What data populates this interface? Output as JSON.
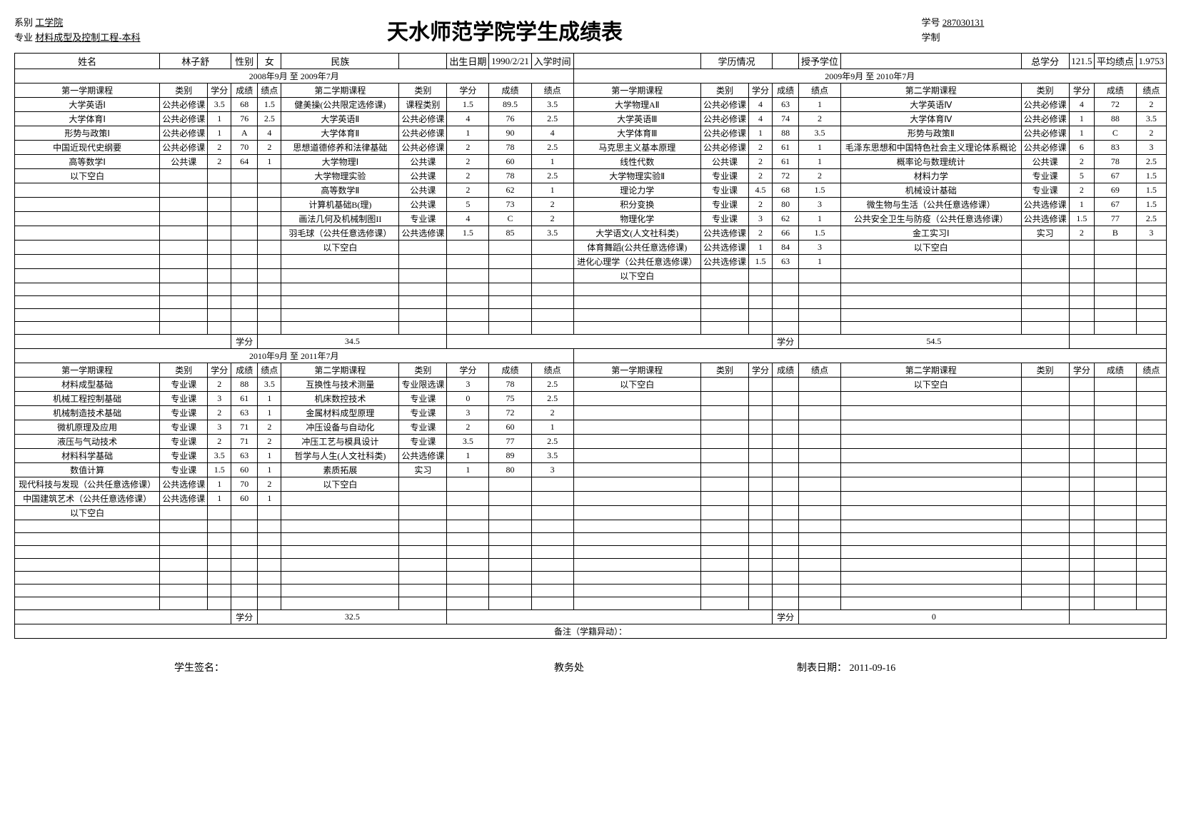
{
  "header": {
    "dept_label": "系别",
    "dept_value": "工学院",
    "major_label": "专业",
    "major_value": "材料成型及控制工程-本科",
    "title": "天水师范学院学生成绩表",
    "sid_label": "学号",
    "sid_value": "287030131",
    "edu_label": "学制"
  },
  "info": {
    "name_label": "姓名",
    "name": "林子舒",
    "sex_label": "性别",
    "sex": "女",
    "eth_label": "民族",
    "dob_label": "出生日期",
    "dob": "1990/2/21",
    "enroll_label": "入学时间",
    "status_label": "学历情况",
    "degree_label": "授予学位",
    "total_cred_label": "总学分",
    "total_cred": "121.5",
    "avg_gpa_label": "平均绩点",
    "avg_gpa": "1.9753"
  },
  "labels": {
    "sem1_h": "第一学期课程",
    "sem2_h": "第二学期课程",
    "type": "类别",
    "cred": "学分",
    "score": "成绩",
    "gpa": "绩点",
    "credit_total": "学分",
    "blank": "以下空白",
    "remarks": "备注（学籍异动）："
  },
  "year1": {
    "span": "2008年9月 至 2009年7月",
    "total": "34.5",
    "s1": [
      {
        "c": "大学英语Ⅰ",
        "t": "公共必修课",
        "cr": "3.5",
        "s": "68",
        "g": "1.5"
      },
      {
        "c": "大学体育Ⅰ",
        "t": "公共必修课",
        "cr": "1",
        "s": "76",
        "g": "2.5"
      },
      {
        "c": "形势与政策Ⅰ",
        "t": "公共必修课",
        "cr": "1",
        "s": "A",
        "g": "4"
      },
      {
        "c": "中国近现代史纲要",
        "t": "公共必修课",
        "cr": "2",
        "s": "70",
        "g": "2"
      },
      {
        "c": "高等数学Ⅰ",
        "t": "公共课",
        "cr": "2",
        "s": "64",
        "g": "1"
      },
      {
        "c": "以下空白",
        "t": "",
        "cr": "",
        "s": "",
        "g": ""
      }
    ],
    "s2": [
      {
        "c": "健美操(公共限定选修课)",
        "t": "课程类别",
        "cr": "1.5",
        "s": "89.5",
        "g": "3.5"
      },
      {
        "c": "大学英语Ⅱ",
        "t": "公共必修课",
        "cr": "4",
        "s": "76",
        "g": "2.5"
      },
      {
        "c": "大学体育Ⅱ",
        "t": "公共必修课",
        "cr": "1",
        "s": "90",
        "g": "4"
      },
      {
        "c": "思想道德修养和法律基础",
        "t": "公共必修课",
        "cr": "2",
        "s": "78",
        "g": "2.5"
      },
      {
        "c": "大学物理Ⅰ",
        "t": "公共课",
        "cr": "2",
        "s": "60",
        "g": "1"
      },
      {
        "c": "大学物理实验",
        "t": "公共课",
        "cr": "2",
        "s": "78",
        "g": "2.5"
      },
      {
        "c": "高等数学Ⅱ",
        "t": "公共课",
        "cr": "2",
        "s": "62",
        "g": "1"
      },
      {
        "c": "计算机基础B(理)",
        "t": "公共课",
        "cr": "5",
        "s": "73",
        "g": "2"
      },
      {
        "c": "画法几何及机械制图II",
        "t": "专业课",
        "cr": "4",
        "s": "C",
        "g": "2"
      },
      {
        "c": "羽毛球（公共任意选修课）",
        "t": "公共选修课",
        "cr": "1.5",
        "s": "85",
        "g": "3.5"
      },
      {
        "c": "以下空白",
        "t": "",
        "cr": "",
        "s": "",
        "g": ""
      }
    ]
  },
  "year2": {
    "span": "2009年9月 至 2010年7月",
    "total": "54.5",
    "s1": [
      {
        "c": "大学物理AⅡ",
        "t": "公共必修课",
        "cr": "4",
        "s": "63",
        "g": "1"
      },
      {
        "c": "大学英语Ⅲ",
        "t": "公共必修课",
        "cr": "4",
        "s": "74",
        "g": "2"
      },
      {
        "c": "大学体育Ⅲ",
        "t": "公共必修课",
        "cr": "1",
        "s": "88",
        "g": "3.5"
      },
      {
        "c": "马克思主义基本原理",
        "t": "公共必修课",
        "cr": "2",
        "s": "61",
        "g": "1"
      },
      {
        "c": "线性代数",
        "t": "公共课",
        "cr": "2",
        "s": "61",
        "g": "1"
      },
      {
        "c": "大学物理实验Ⅱ",
        "t": "专业课",
        "cr": "2",
        "s": "72",
        "g": "2"
      },
      {
        "c": "理论力学",
        "t": "专业课",
        "cr": "4.5",
        "s": "68",
        "g": "1.5"
      },
      {
        "c": "积分变换",
        "t": "专业课",
        "cr": "2",
        "s": "80",
        "g": "3"
      },
      {
        "c": "物理化学",
        "t": "专业课",
        "cr": "3",
        "s": "62",
        "g": "1"
      },
      {
        "c": "大学语文(人文社科类)",
        "t": "公共选修课",
        "cr": "2",
        "s": "66",
        "g": "1.5"
      },
      {
        "c": "体育舞蹈(公共任意选修课)",
        "t": "公共选修课",
        "cr": "1",
        "s": "84",
        "g": "3"
      },
      {
        "c": "进化心理学（公共任意选修课）",
        "t": "公共选修课",
        "cr": "1.5",
        "s": "63",
        "g": "1"
      },
      {
        "c": "以下空白",
        "t": "",
        "cr": "",
        "s": "",
        "g": ""
      }
    ],
    "s2": [
      {
        "c": "大学英语Ⅳ",
        "t": "公共必修课",
        "cr": "4",
        "s": "72",
        "g": "2"
      },
      {
        "c": "大学体育Ⅳ",
        "t": "公共必修课",
        "cr": "1",
        "s": "88",
        "g": "3.5"
      },
      {
        "c": "形势与政策Ⅱ",
        "t": "公共必修课",
        "cr": "1",
        "s": "C",
        "g": "2"
      },
      {
        "c": "毛泽东思想和中国特色社会主义理论体系概论",
        "t": "公共必修课",
        "cr": "6",
        "s": "83",
        "g": "3"
      },
      {
        "c": "概率论与数理统计",
        "t": "公共课",
        "cr": "2",
        "s": "78",
        "g": "2.5"
      },
      {
        "c": "材料力学",
        "t": "专业课",
        "cr": "5",
        "s": "67",
        "g": "1.5"
      },
      {
        "c": "机械设计基础",
        "t": "专业课",
        "cr": "2",
        "s": "69",
        "g": "1.5"
      },
      {
        "c": "微生物与生活（公共任意选修课）",
        "t": "公共选修课",
        "cr": "1",
        "s": "67",
        "g": "1.5"
      },
      {
        "c": "公共安全卫生与防疫（公共任意选修课）",
        "t": "公共选修课",
        "cr": "1.5",
        "s": "77",
        "g": "2.5"
      },
      {
        "c": "金工实习Ⅰ",
        "t": "实习",
        "cr": "2",
        "s": "B",
        "g": "3"
      },
      {
        "c": "以下空白",
        "t": "",
        "cr": "",
        "s": "",
        "g": ""
      }
    ]
  },
  "year3": {
    "span": "2010年9月 至 2011年7月",
    "total": "32.5",
    "s1": [
      {
        "c": "材料成型基础",
        "t": "专业课",
        "cr": "2",
        "s": "88",
        "g": "3.5"
      },
      {
        "c": "机械工程控制基础",
        "t": "专业课",
        "cr": "3",
        "s": "61",
        "g": "1"
      },
      {
        "c": "机械制造技术基础",
        "t": "专业课",
        "cr": "2",
        "s": "63",
        "g": "1"
      },
      {
        "c": "微机原理及应用",
        "t": "专业课",
        "cr": "3",
        "s": "71",
        "g": "2"
      },
      {
        "c": "液压与气动技术",
        "t": "专业课",
        "cr": "2",
        "s": "71",
        "g": "2"
      },
      {
        "c": "材料科学基础",
        "t": "专业课",
        "cr": "3.5",
        "s": "63",
        "g": "1"
      },
      {
        "c": "数值计算",
        "t": "专业课",
        "cr": "1.5",
        "s": "60",
        "g": "1"
      },
      {
        "c": "现代科技与发现（公共任意选修课）",
        "t": "公共选修课",
        "cr": "1",
        "s": "70",
        "g": "2"
      },
      {
        "c": "中国建筑艺术（公共任意选修课）",
        "t": "公共选修课",
        "cr": "1",
        "s": "60",
        "g": "1"
      },
      {
        "c": "以下空白",
        "t": "",
        "cr": "",
        "s": "",
        "g": ""
      }
    ],
    "s2": [
      {
        "c": "互换性与技术测量",
        "t": "专业限选课",
        "cr": "3",
        "s": "78",
        "g": "2.5"
      },
      {
        "c": "机床数控技术",
        "t": "专业课",
        "cr": "0",
        "s": "75",
        "g": "2.5"
      },
      {
        "c": "金属材料成型原理",
        "t": "专业课",
        "cr": "3",
        "s": "72",
        "g": "2"
      },
      {
        "c": "冲压设备与自动化",
        "t": "专业课",
        "cr": "2",
        "s": "60",
        "g": "1"
      },
      {
        "c": "冲压工艺与模具设计",
        "t": "专业课",
        "cr": "3.5",
        "s": "77",
        "g": "2.5"
      },
      {
        "c": "哲学与人生(人文社科类)",
        "t": "公共选修课",
        "cr": "1",
        "s": "89",
        "g": "3.5"
      },
      {
        "c": "素质拓展",
        "t": "实习",
        "cr": "1",
        "s": "80",
        "g": "3"
      },
      {
        "c": "以下空白",
        "t": "",
        "cr": "",
        "s": "",
        "g": ""
      }
    ]
  },
  "year4": {
    "total": "0",
    "s1": [
      {
        "c": "以下空白",
        "t": "",
        "cr": "",
        "s": "",
        "g": ""
      }
    ],
    "s2": [
      {
        "c": "以下空白",
        "t": "",
        "cr": "",
        "s": "",
        "g": ""
      }
    ]
  },
  "footer": {
    "sign": "学生签名：",
    "office": "教务处",
    "date_label": "制表日期：",
    "date_value": "2011-09-16"
  },
  "layout": {
    "rows_per_block": 17
  }
}
